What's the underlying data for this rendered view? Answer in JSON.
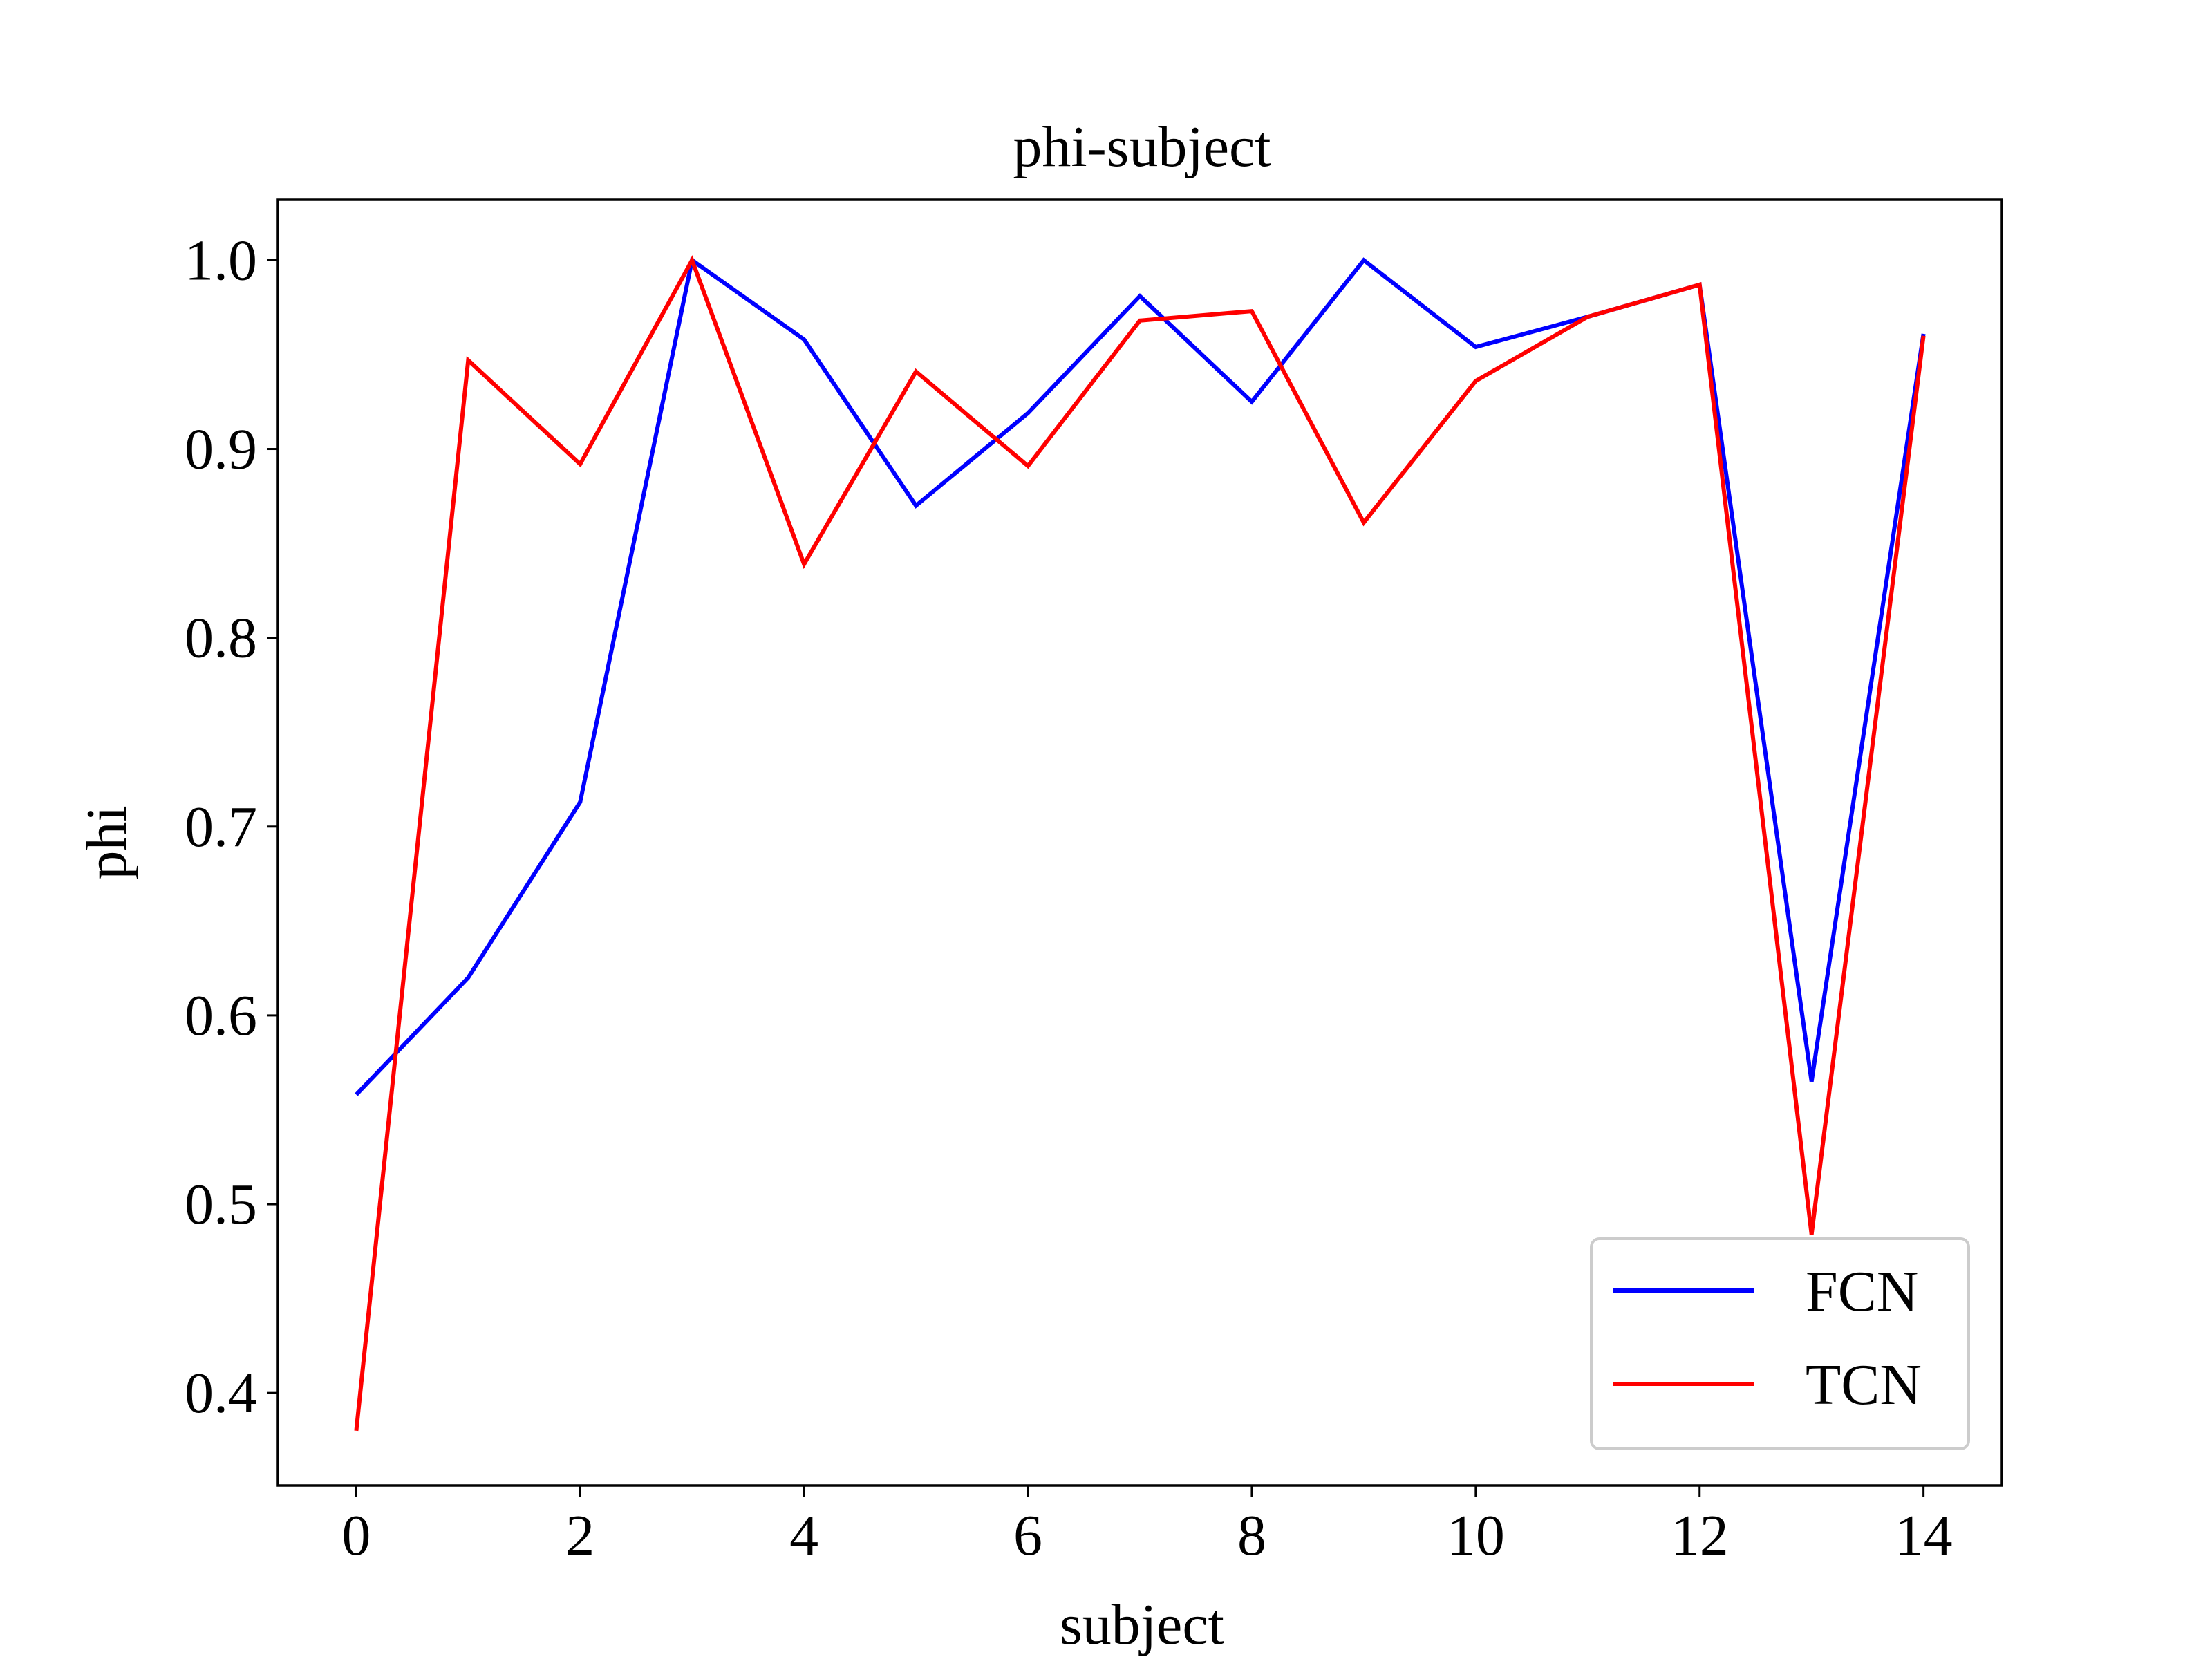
{
  "chart_data": {
    "type": "line",
    "title": "phi-subject",
    "xlabel": "subject",
    "ylabel": "phi",
    "x": [
      0,
      1,
      2,
      3,
      4,
      5,
      6,
      7,
      8,
      9,
      10,
      11,
      12,
      13,
      14
    ],
    "xlim": [
      -0.7,
      14.7
    ],
    "ylim": [
      0.351,
      1.032
    ],
    "xticks": [
      0,
      2,
      4,
      6,
      8,
      10,
      12,
      14
    ],
    "xtick_labels": [
      "0",
      "2",
      "4",
      "6",
      "8",
      "10",
      "12",
      "14"
    ],
    "yticks": [
      0.4,
      0.5,
      0.6,
      0.7,
      0.8,
      0.9,
      1.0
    ],
    "ytick_labels": [
      "0.4",
      "0.5",
      "0.6",
      "0.7",
      "0.8",
      "0.9",
      "1.0"
    ],
    "grid": false,
    "legend_position": "lower-right",
    "series": [
      {
        "name": "FCN",
        "color": "#0000ff",
        "values": [
          0.558,
          0.62,
          0.713,
          1.0,
          0.958,
          0.87,
          0.919,
          0.981,
          0.925,
          1.0,
          0.954,
          0.97,
          0.987,
          0.565,
          0.961
        ]
      },
      {
        "name": "TCN",
        "color": "#ff0000",
        "values": [
          0.38,
          0.947,
          0.892,
          1.0,
          0.839,
          0.941,
          0.891,
          0.968,
          0.973,
          0.861,
          0.936,
          0.97,
          0.987,
          0.484,
          0.96
        ]
      }
    ]
  }
}
